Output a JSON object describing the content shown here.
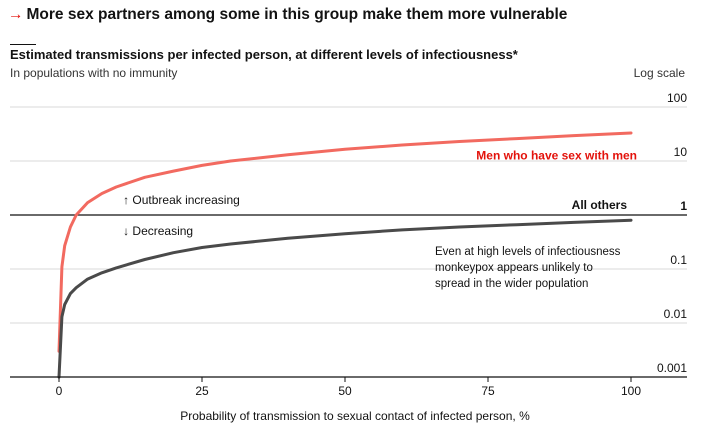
{
  "headline": {
    "arrow": "→",
    "text": "More sex partners among some in this group make them more vulnerable"
  },
  "colors": {
    "accent_red": "#e3120b",
    "msm_line": "#f26a60",
    "others_line": "#4a4a4a",
    "gridline": "#d9d9d9",
    "threshold_line": "#121212"
  },
  "chart_data": {
    "type": "line",
    "title": "Estimated transmissions per infected person, at different levels of infectiousness*",
    "subtitle": "In populations with no immunity",
    "scale_note": "Log scale",
    "xlabel": "Probability of transmission to sexual contact of infected person, %",
    "ylabel": "",
    "x_log": false,
    "y_log": true,
    "xlim": [
      0,
      100
    ],
    "ylim": [
      0.001,
      100
    ],
    "x_ticks": [
      0,
      25,
      50,
      75,
      100
    ],
    "y_ticks": [
      {
        "value": 0.001,
        "label": "0.001",
        "bold": false
      },
      {
        "value": 0.01,
        "label": "0.01",
        "bold": false
      },
      {
        "value": 0.1,
        "label": "0.1",
        "bold": false
      },
      {
        "value": 1,
        "label": "1",
        "bold": true
      },
      {
        "value": 10,
        "label": "10",
        "bold": false
      },
      {
        "value": 100,
        "label": "100",
        "bold": false
      }
    ],
    "grid": true,
    "threshold": {
      "value": 1,
      "label_up": "↑ Outbreak increasing",
      "label_down": "↓ Decreasing"
    },
    "series": [
      {
        "name": "Men who have sex with men",
        "color": "#f26a60",
        "points": [
          [
            0,
            0.003
          ],
          [
            0.5,
            0.11
          ],
          [
            1,
            0.27
          ],
          [
            2,
            0.6
          ],
          [
            3,
            1.0
          ],
          [
            5,
            1.7
          ],
          [
            7.5,
            2.5
          ],
          [
            10,
            3.3
          ],
          [
            15,
            5.0
          ],
          [
            20,
            6.5
          ],
          [
            25,
            8.3
          ],
          [
            30,
            10.0
          ],
          [
            40,
            13.0
          ],
          [
            50,
            16.5
          ],
          [
            60,
            19.8
          ],
          [
            70,
            23.0
          ],
          [
            80,
            26.0
          ],
          [
            90,
            29.5
          ],
          [
            100,
            33.0
          ]
        ]
      },
      {
        "name": "All others",
        "color": "#4a4a4a",
        "points": [
          [
            0,
            0.001
          ],
          [
            0.5,
            0.013
          ],
          [
            1,
            0.022
          ],
          [
            2,
            0.035
          ],
          [
            3,
            0.045
          ],
          [
            5,
            0.065
          ],
          [
            7.5,
            0.085
          ],
          [
            10,
            0.105
          ],
          [
            15,
            0.15
          ],
          [
            20,
            0.2
          ],
          [
            25,
            0.25
          ],
          [
            30,
            0.29
          ],
          [
            40,
            0.37
          ],
          [
            50,
            0.45
          ],
          [
            60,
            0.53
          ],
          [
            70,
            0.6
          ],
          [
            80,
            0.66
          ],
          [
            90,
            0.73
          ],
          [
            100,
            0.8
          ]
        ]
      }
    ],
    "annotations": [
      "Even at high levels of infectiousness",
      "monkeypox appears unlikely to",
      "spread in the wider population"
    ]
  }
}
